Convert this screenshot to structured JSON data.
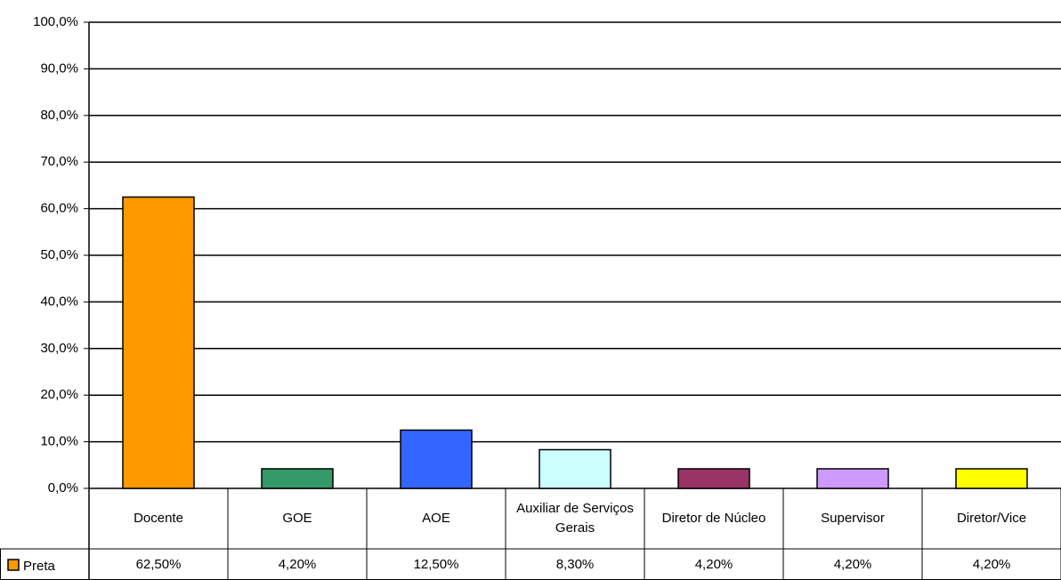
{
  "chart_data": {
    "type": "bar",
    "categories": [
      "Docente",
      "GOE",
      "AOE",
      "Auxiliar de Serviços Gerais",
      "Diretor de Núcleo",
      "Supervisor",
      "Diretor/Vice"
    ],
    "series": [
      {
        "name": "Preta",
        "color": "#ff9900",
        "colors": [
          "#ff9900",
          "#339966",
          "#3366ff",
          "#ccffff",
          "#993366",
          "#cc99ff",
          "#ffff00"
        ],
        "values": [
          62.5,
          4.2,
          12.5,
          8.3,
          4.2,
          4.2,
          4.2
        ],
        "value_labels": [
          "62,50%",
          "4,20%",
          "12,50%",
          "8,30%",
          "4,20%",
          "4,20%",
          "4,20%"
        ]
      }
    ],
    "ylim": [
      0,
      100
    ],
    "yticks": [
      {
        "value": 0,
        "label": "0,0%"
      },
      {
        "value": 10,
        "label": "10,0%"
      },
      {
        "value": 20,
        "label": "20,0%"
      },
      {
        "value": 30,
        "label": "30,0%"
      },
      {
        "value": 40,
        "label": "40,0%"
      },
      {
        "value": 50,
        "label": "50,0%"
      },
      {
        "value": 60,
        "label": "60,0%"
      },
      {
        "value": 70,
        "label": "70,0%"
      },
      {
        "value": 80,
        "label": "80,0%"
      },
      {
        "value": 90,
        "label": "90,0%"
      },
      {
        "value": 100,
        "label": "100,0%"
      }
    ],
    "grid": true
  }
}
